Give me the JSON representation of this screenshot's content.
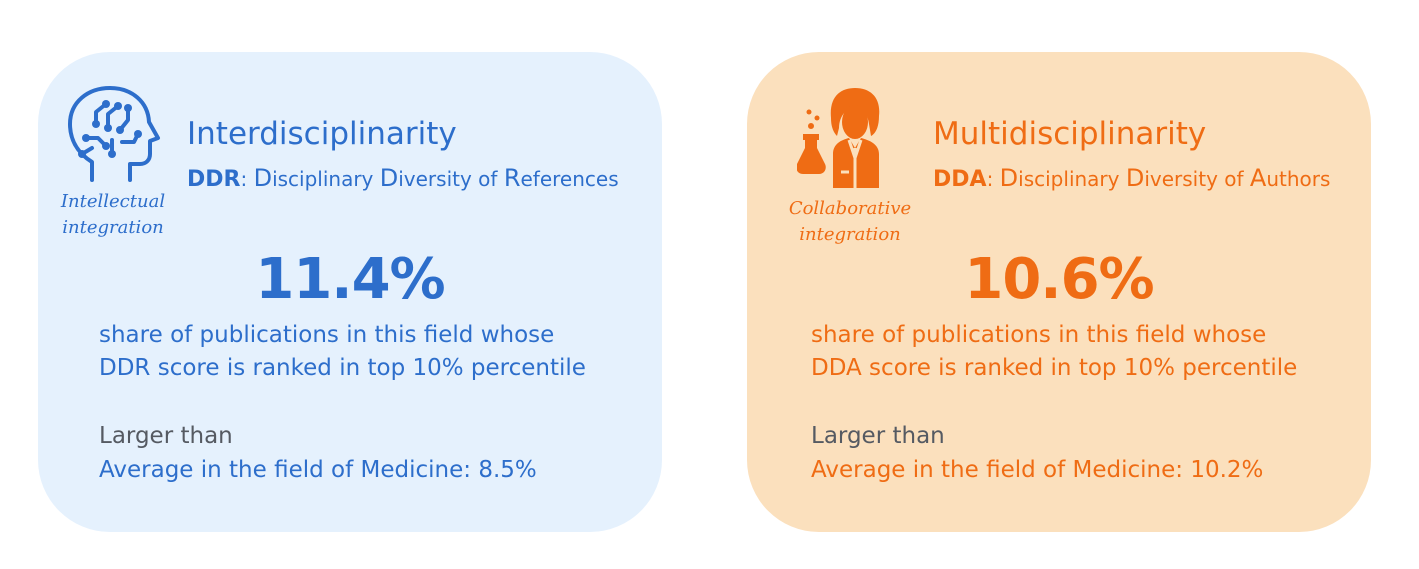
{
  "colors": {
    "blue": "#2d6ecb",
    "orange": "#ef6c14",
    "gray": "#555a62",
    "blue_bg": "#e5f1fd",
    "orange_bg": "#fbe0bd"
  },
  "cards": [
    {
      "icon": "brain-head-icon",
      "caption_line1": "Intellectual",
      "caption_line2": "integration",
      "title": "Interdisciplinarity",
      "abbr": "DDR",
      "sep": ": ",
      "w1_cap": "D",
      "w1_rest": "isciplinary ",
      "w2_cap": "D",
      "w2_rest": "iversity of ",
      "w3_cap": "R",
      "w3_rest": "eferences",
      "big_value": "11.4%",
      "desc_line1": "share of publications in this field whose",
      "desc_line2": "DDR score is ranked in top 10% percentile",
      "comparison": "Larger than",
      "average": "Average in the field of Medicine: 8.5%"
    },
    {
      "icon": "scientist-flask-icon",
      "caption_line1": "Collaborative",
      "caption_line2": "integration",
      "title": "Multidisciplinarity",
      "abbr": "DDA",
      "sep": ": ",
      "w1_cap": "D",
      "w1_rest": "isciplinary ",
      "w2_cap": "D",
      "w2_rest": "iversity of ",
      "w3_cap": "A",
      "w3_rest": "uthors",
      "big_value": "10.6%",
      "desc_line1": "share of publications in this field whose",
      "desc_line2": "DDA score is ranked in top 10% percentile",
      "comparison": "Larger than",
      "average": "Average in the field of Medicine: 10.2%"
    }
  ]
}
